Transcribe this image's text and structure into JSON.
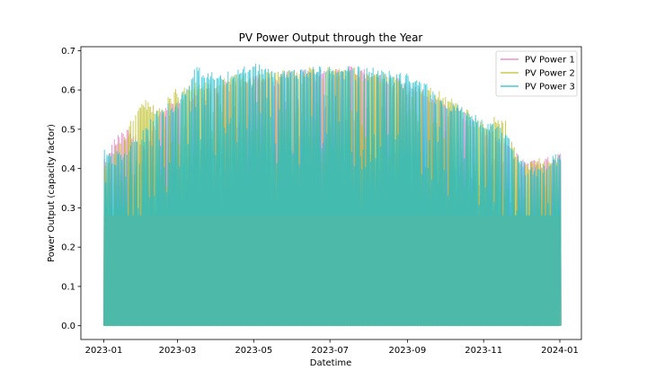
{
  "chart_data": {
    "type": "line",
    "title": "PV Power Output through the Year",
    "xlabel": "Datetime",
    "ylabel": "Power Output (capacity factor)",
    "x_range": [
      "2023-01-01",
      "2024-01-01"
    ],
    "ylim": [
      -0.035,
      0.71
    ],
    "x_ticks": [
      "2023-01",
      "2023-03",
      "2023-05",
      "2023-07",
      "2023-09",
      "2023-11",
      "2024-01"
    ],
    "x_tick_dates": [
      "2023-01-01",
      "2023-03-01",
      "2023-05-01",
      "2023-07-01",
      "2023-09-01",
      "2023-11-01",
      "2024-01-01"
    ],
    "y_ticks": [
      "0.0",
      "0.1",
      "0.2",
      "0.3",
      "0.4",
      "0.5",
      "0.6",
      "0.7"
    ],
    "y_tick_values": [
      0.0,
      0.1,
      0.2,
      0.3,
      0.4,
      0.5,
      0.6,
      0.7
    ],
    "legend_position": "top-right",
    "grid": false,
    "series": [
      {
        "name": "PV Power 1",
        "color": "#e377c2",
        "x": [
          "2023-01-01",
          "2023-01-15",
          "2023-02-01",
          "2023-02-15",
          "2023-03-01",
          "2023-03-15",
          "2023-04-01",
          "2023-04-15",
          "2023-05-01",
          "2023-05-15",
          "2023-06-01",
          "2023-06-15",
          "2023-07-01",
          "2023-07-15",
          "2023-08-01",
          "2023-08-15",
          "2023-09-01",
          "2023-09-15",
          "2023-10-01",
          "2023-10-15",
          "2023-11-01",
          "2023-11-15",
          "2023-12-01",
          "2023-12-15",
          "2024-01-01"
        ],
        "daily_max": [
          0.43,
          0.51,
          0.47,
          0.55,
          0.58,
          0.6,
          0.62,
          0.63,
          0.64,
          0.64,
          0.65,
          0.66,
          0.65,
          0.66,
          0.65,
          0.64,
          0.62,
          0.6,
          0.57,
          0.55,
          0.5,
          0.48,
          0.43,
          0.42,
          0.44
        ]
      },
      {
        "name": "PV Power 2",
        "color": "#bcbd22",
        "x": [
          "2023-01-01",
          "2023-01-15",
          "2023-02-01",
          "2023-02-15",
          "2023-03-01",
          "2023-03-15",
          "2023-04-01",
          "2023-04-15",
          "2023-05-01",
          "2023-05-15",
          "2023-06-01",
          "2023-06-15",
          "2023-07-01",
          "2023-07-15",
          "2023-08-01",
          "2023-08-15",
          "2023-09-01",
          "2023-09-15",
          "2023-10-01",
          "2023-10-15",
          "2023-11-01",
          "2023-11-15",
          "2023-12-01",
          "2023-12-15",
          "2024-01-01"
        ],
        "daily_max": [
          0.42,
          0.48,
          0.58,
          0.56,
          0.61,
          0.62,
          0.62,
          0.64,
          0.64,
          0.65,
          0.65,
          0.66,
          0.66,
          0.66,
          0.65,
          0.64,
          0.62,
          0.61,
          0.59,
          0.56,
          0.51,
          0.55,
          0.41,
          0.43,
          0.43
        ]
      },
      {
        "name": "PV Power 3",
        "color": "#17becf",
        "x": [
          "2023-01-01",
          "2023-01-15",
          "2023-02-01",
          "2023-02-15",
          "2023-03-01",
          "2023-03-15",
          "2023-04-01",
          "2023-04-15",
          "2023-05-01",
          "2023-05-15",
          "2023-06-01",
          "2023-06-15",
          "2023-07-01",
          "2023-07-15",
          "2023-08-01",
          "2023-08-15",
          "2023-09-01",
          "2023-09-15",
          "2023-10-01",
          "2023-10-15",
          "2023-11-01",
          "2023-11-15",
          "2023-12-01",
          "2023-12-15",
          "2024-01-01"
        ],
        "daily_max": [
          0.45,
          0.44,
          0.5,
          0.56,
          0.57,
          0.66,
          0.64,
          0.65,
          0.67,
          0.65,
          0.65,
          0.66,
          0.66,
          0.66,
          0.66,
          0.65,
          0.64,
          0.62,
          0.57,
          0.56,
          0.52,
          0.51,
          0.42,
          0.4,
          0.45
        ]
      }
    ]
  }
}
